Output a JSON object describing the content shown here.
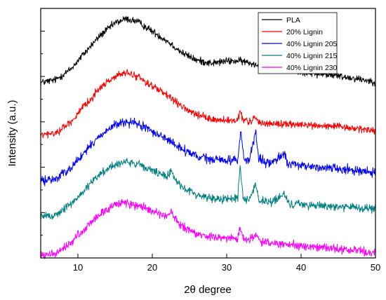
{
  "chart_data": {
    "type": "line",
    "title": "",
    "xlabel": "2θ degree",
    "ylabel": "Intensity (a.u.)",
    "xlim": [
      5,
      50
    ],
    "xticks": [
      10,
      20,
      30,
      40,
      50
    ],
    "y_tick_labels_shown": false,
    "grid": false,
    "legend_position": "top-right",
    "series": [
      {
        "name": "PLA",
        "color": "#000000",
        "noise": 2.6,
        "points": [
          [
            5,
            18
          ],
          [
            7,
            22
          ],
          [
            9,
            37
          ],
          [
            11,
            62
          ],
          [
            13,
            86
          ],
          [
            15,
            104
          ],
          [
            16.5,
            110
          ],
          [
            18,
            106
          ],
          [
            20,
            92
          ],
          [
            22,
            78
          ],
          [
            24,
            61
          ],
          [
            26,
            50
          ],
          [
            28,
            46
          ],
          [
            30,
            49
          ],
          [
            32,
            49
          ],
          [
            34,
            44
          ],
          [
            36,
            43
          ],
          [
            38,
            38
          ],
          [
            40,
            33
          ],
          [
            42,
            31
          ],
          [
            44,
            29
          ],
          [
            46,
            26
          ],
          [
            48,
            23
          ],
          [
            50,
            19
          ]
        ]
      },
      {
        "name": "20% Lignin",
        "color": "#ff0000",
        "noise": 2.6,
        "points": [
          [
            5,
            7
          ],
          [
            7,
            10
          ],
          [
            9,
            26
          ],
          [
            11,
            50
          ],
          [
            13,
            76
          ],
          [
            15,
            92
          ],
          [
            16.5,
            97
          ],
          [
            18,
            92
          ],
          [
            20,
            78
          ],
          [
            22,
            64
          ],
          [
            24,
            48
          ],
          [
            26,
            36
          ],
          [
            28,
            30
          ],
          [
            30,
            28
          ],
          [
            31.5,
            27
          ],
          [
            31.8,
            42
          ],
          [
            32.2,
            29
          ],
          [
            33,
            26
          ],
          [
            33.8,
            32
          ],
          [
            34.5,
            25
          ],
          [
            36,
            24
          ],
          [
            38,
            23
          ],
          [
            40,
            22
          ],
          [
            44,
            20
          ],
          [
            48,
            16
          ],
          [
            50,
            14
          ]
        ]
      },
      {
        "name": "40% Lignin 205",
        "color": "#0000ff",
        "noise": 3.2,
        "points": [
          [
            5,
            6
          ],
          [
            7,
            9
          ],
          [
            9,
            25
          ],
          [
            11,
            48
          ],
          [
            13,
            72
          ],
          [
            15,
            87
          ],
          [
            16.5,
            91
          ],
          [
            18,
            88
          ],
          [
            20,
            78
          ],
          [
            22,
            66
          ],
          [
            24,
            52
          ],
          [
            26,
            41
          ],
          [
            28,
            37
          ],
          [
            30,
            36
          ],
          [
            31.5,
            37
          ],
          [
            31.9,
            80
          ],
          [
            32.3,
            38
          ],
          [
            33,
            34
          ],
          [
            33.9,
            78
          ],
          [
            34.3,
            36
          ],
          [
            36,
            31
          ],
          [
            37.8,
            47
          ],
          [
            38.2,
            30
          ],
          [
            40,
            28
          ],
          [
            44,
            25
          ],
          [
            48,
            21
          ],
          [
            50,
            18
          ]
        ]
      },
      {
        "name": "40% Lignin 215",
        "color": "#008080",
        "noise": 3.0,
        "points": [
          [
            5,
            4
          ],
          [
            7,
            7
          ],
          [
            9,
            22
          ],
          [
            11,
            44
          ],
          [
            13,
            67
          ],
          [
            15,
            80
          ],
          [
            16.5,
            84
          ],
          [
            18,
            80
          ],
          [
            20,
            71
          ],
          [
            22,
            61
          ],
          [
            22.6,
            73
          ],
          [
            23,
            60
          ],
          [
            24,
            47
          ],
          [
            26,
            36
          ],
          [
            28,
            31
          ],
          [
            30,
            30
          ],
          [
            31.5,
            32
          ],
          [
            31.8,
            78
          ],
          [
            32.2,
            32
          ],
          [
            33,
            29
          ],
          [
            33.9,
            52
          ],
          [
            34.3,
            28
          ],
          [
            36,
            25
          ],
          [
            37.8,
            37
          ],
          [
            38.2,
            24
          ],
          [
            40,
            22
          ],
          [
            44,
            20
          ],
          [
            48,
            17
          ],
          [
            50,
            15
          ]
        ]
      },
      {
        "name": "40% Lignin 230",
        "color": "#ff00ff",
        "noise": 3.0,
        "points": [
          [
            5,
            3
          ],
          [
            7,
            6
          ],
          [
            9,
            21
          ],
          [
            11,
            43
          ],
          [
            13,
            64
          ],
          [
            15,
            77
          ],
          [
            16.5,
            80
          ],
          [
            18,
            76
          ],
          [
            20,
            67
          ],
          [
            22,
            59
          ],
          [
            22.6,
            67
          ],
          [
            23,
            57
          ],
          [
            24,
            45
          ],
          [
            26,
            34
          ],
          [
            28,
            30
          ],
          [
            30,
            28
          ],
          [
            31.5,
            29
          ],
          [
            31.8,
            46
          ],
          [
            32.2,
            28
          ],
          [
            33,
            26
          ],
          [
            33.9,
            35
          ],
          [
            34.3,
            25
          ],
          [
            36,
            21
          ],
          [
            38,
            19
          ],
          [
            40,
            17
          ],
          [
            44,
            14
          ],
          [
            48,
            10
          ],
          [
            50,
            7
          ]
        ]
      }
    ]
  }
}
